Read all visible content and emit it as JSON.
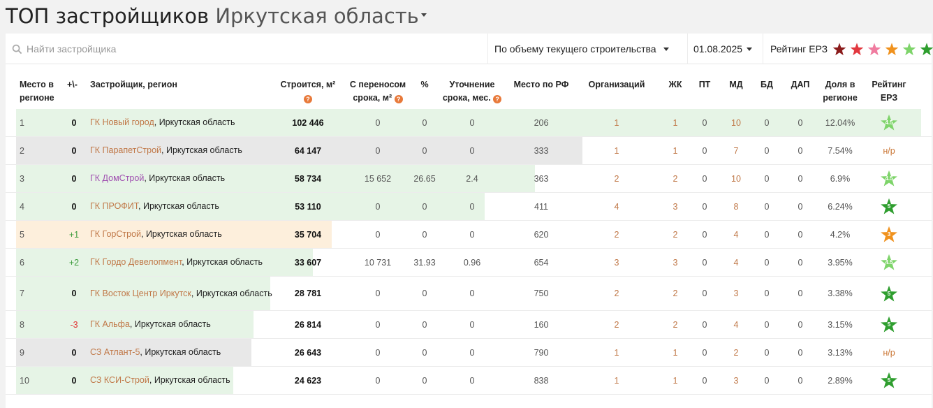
{
  "header": {
    "title": "ТОП застройщиков",
    "region": "Иркутская область"
  },
  "toolbar": {
    "search_placeholder": "Найти застройщика",
    "sort_label": "По объему текущего строительства",
    "date_label": "01.08.2025",
    "rating_label": "Рейтинг ЕРЗ",
    "legend_star_colors": [
      "#8b1c1c",
      "#e2383f",
      "#f07ca0",
      "#f0921e",
      "#7ed46a",
      "#2f9e2f"
    ]
  },
  "columns": {
    "place": "Место в регионе",
    "change": "+\\-",
    "developer": "Застройщик, регион",
    "building": "Строится, м²",
    "postponed": "С переносом срока, м²",
    "percent": "%",
    "clarification": "Уточнение срока, мес.",
    "rf_place": "Место по РФ",
    "orgs": "Организаций",
    "zhk": "ЖК",
    "pt": "ПТ",
    "md": "МД",
    "bd": "БД",
    "dap": "ДАП",
    "share": "Доля в регионе",
    "rating": "Рейтинг ЕРЗ"
  },
  "rows": [
    {
      "place": "1",
      "change": "0",
      "name": "ГК Новый город",
      "region": "Иркутская область",
      "building": "102 446",
      "postponed": "0",
      "percent": "0",
      "clarification": "0",
      "rf_place": "206",
      "orgs": "1",
      "zhk": "1",
      "pt": "0",
      "md": "10",
      "bd": "0",
      "dap": "0",
      "share": "12.04%",
      "rating": "4.5",
      "rating_color": "#7ed46a",
      "bar_color": "#e6f4e6",
      "bar_fraction": 1.0,
      "name_color": "link",
      "change_type": "zero"
    },
    {
      "place": "2",
      "change": "0",
      "name": "ГК ПарапетСтрой",
      "region": "Иркутская область",
      "building": "64 147",
      "postponed": "0",
      "percent": "0",
      "clarification": "0",
      "rf_place": "333",
      "orgs": "1",
      "zhk": "1",
      "pt": "0",
      "md": "7",
      "bd": "0",
      "dap": "0",
      "share": "7.54%",
      "rating": "н/р",
      "rating_color": "",
      "bar_color": "#e8e8e8",
      "bar_fraction": 0.626,
      "name_color": "link",
      "change_type": "zero"
    },
    {
      "place": "3",
      "change": "0",
      "name": "ГК ДомСтрой",
      "region": "Иркутская область",
      "building": "58 734",
      "postponed": "15 652",
      "percent": "26.65",
      "clarification": "2.4",
      "rf_place": "363",
      "orgs": "2",
      "zhk": "2",
      "pt": "0",
      "md": "10",
      "bd": "0",
      "dap": "0",
      "share": "6.9%",
      "rating": "4.5",
      "rating_color": "#7ed46a",
      "bar_color": "#e6f4e6",
      "bar_fraction": 0.573,
      "name_color": "purple",
      "change_type": "zero"
    },
    {
      "place": "4",
      "change": "0",
      "name": "ГК ПРОФИТ",
      "region": "Иркутская область",
      "building": "53 110",
      "postponed": "0",
      "percent": "0",
      "clarification": "0",
      "rf_place": "411",
      "orgs": "4",
      "zhk": "3",
      "pt": "0",
      "md": "8",
      "bd": "0",
      "dap": "0",
      "share": "6.24%",
      "rating": "5",
      "rating_color": "#2f9e2f",
      "bar_color": "#e6f4e6",
      "bar_fraction": 0.518,
      "name_color": "link",
      "change_type": "zero"
    },
    {
      "place": "5",
      "change": "+1",
      "name": "ГК ГорСтрой",
      "region": "Иркутская область",
      "building": "35 704",
      "postponed": "0",
      "percent": "0",
      "clarification": "0",
      "rf_place": "620",
      "orgs": "2",
      "zhk": "2",
      "pt": "0",
      "md": "4",
      "bd": "0",
      "dap": "0",
      "share": "4.2%",
      "rating": "3",
      "rating_color": "#f0921e",
      "bar_color": "#fdefdc",
      "bar_fraction": 0.349,
      "name_color": "link",
      "change_type": "pos"
    },
    {
      "place": "6",
      "change": "+2",
      "name": "ГК Гордо Девелопмент",
      "region": "Иркутская область",
      "building": "33 607",
      "postponed": "10 731",
      "percent": "31.93",
      "clarification": "0.96",
      "rf_place": "654",
      "orgs": "3",
      "zhk": "3",
      "pt": "0",
      "md": "4",
      "bd": "0",
      "dap": "0",
      "share": "3.95%",
      "rating": "4.5",
      "rating_color": "#7ed46a",
      "bar_color": "#e6f4e6",
      "bar_fraction": 0.328,
      "name_color": "link",
      "change_type": "pos"
    },
    {
      "place": "7",
      "change": "0",
      "name": "ГК Восток Центр Иркутск",
      "region": "Иркутская область",
      "building": "28 781",
      "postponed": "0",
      "percent": "0",
      "clarification": "0",
      "rf_place": "750",
      "orgs": "2",
      "zhk": "2",
      "pt": "0",
      "md": "3",
      "bd": "0",
      "dap": "0",
      "share": "3.38%",
      "rating": "5",
      "rating_color": "#2f9e2f",
      "bar_color": "#e6f4e6",
      "bar_fraction": 0.281,
      "name_color": "link",
      "change_type": "zero"
    },
    {
      "place": "8",
      "change": "-3",
      "name": "ГК Альфа",
      "region": "Иркутская область",
      "building": "26 814",
      "postponed": "0",
      "percent": "0",
      "clarification": "0",
      "rf_place": "160",
      "orgs": "2",
      "zhk": "2",
      "pt": "0",
      "md": "4",
      "bd": "0",
      "dap": "0",
      "share": "3.15%",
      "rating": "5",
      "rating_color": "#2f9e2f",
      "bar_color": "#e6f4e6",
      "bar_fraction": 0.262,
      "name_color": "link",
      "change_type": "neg"
    },
    {
      "place": "9",
      "change": "0",
      "name": "СЗ Атлант-5",
      "region": "Иркутская область",
      "building": "26 643",
      "postponed": "0",
      "percent": "0",
      "clarification": "0",
      "rf_place": "790",
      "orgs": "1",
      "zhk": "1",
      "pt": "0",
      "md": "2",
      "bd": "0",
      "dap": "0",
      "share": "3.13%",
      "rating": "н/р",
      "rating_color": "",
      "bar_color": "#e8e8e8",
      "bar_fraction": 0.26,
      "name_color": "link",
      "change_type": "zero"
    },
    {
      "place": "10",
      "change": "0",
      "name": "СЗ КСИ-Строй",
      "region": "Иркутская область",
      "building": "24 623",
      "postponed": "0",
      "percent": "0",
      "clarification": "0",
      "rf_place": "838",
      "orgs": "1",
      "zhk": "1",
      "pt": "0",
      "md": "3",
      "bd": "0",
      "dap": "0",
      "share": "2.89%",
      "rating": "5",
      "rating_color": "#2f9e2f",
      "bar_color": "#e6f4e6",
      "bar_fraction": 0.24,
      "name_color": "link",
      "change_type": "zero"
    }
  ]
}
